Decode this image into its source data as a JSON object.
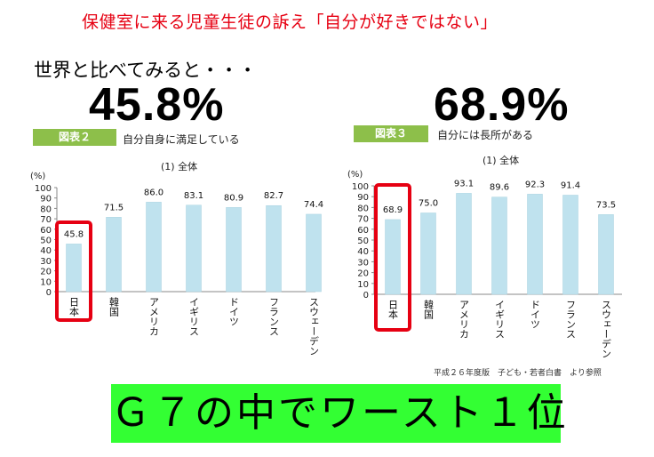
{
  "headline": "保健室に来る児童生徒の訴え「自分が好きではない」",
  "subhead": "世界と比べてみると・・・",
  "highlight_left": "45.8%",
  "highlight_right": "68.9%",
  "source_note": "平成２６年度版　子ども・若者白書　より参照",
  "banner": "Ｇ７の中でワースト１位",
  "colors": {
    "accent_red": "#e60012",
    "bar_fill": "#bfe2ee",
    "badge_green": "#8dbf4a",
    "banner_green": "#33ff33"
  },
  "chart_data": [
    {
      "type": "bar",
      "figure_label": "図表２",
      "title": "自分自身に満足している",
      "subtitle": "(1) 全体",
      "ylabel": "(%)",
      "ylim": [
        0,
        100
      ],
      "yticks": [
        0,
        10,
        20,
        30,
        40,
        50,
        60,
        70,
        80,
        90,
        100
      ],
      "categories": [
        "日本",
        "韓国",
        "アメリカ",
        "イギリス",
        "ドイツ",
        "フランス",
        "スウェーデン"
      ],
      "values": [
        45.8,
        71.5,
        86.0,
        83.1,
        80.9,
        82.7,
        74.4
      ],
      "value_labels": [
        "45.8",
        "71.5",
        "86.0",
        "83.1",
        "80.9",
        "82.7",
        "74.4"
      ],
      "highlight_category": "日本"
    },
    {
      "type": "bar",
      "figure_label": "図表３",
      "title": "自分には長所がある",
      "subtitle": "(1) 全体",
      "ylabel": "(%)",
      "ylim": [
        0,
        100
      ],
      "yticks": [
        0,
        10,
        20,
        30,
        40,
        50,
        60,
        70,
        80,
        90,
        100
      ],
      "categories": [
        "日本",
        "韓国",
        "アメリカ",
        "イギリス",
        "ドイツ",
        "フランス",
        "スウェーデン"
      ],
      "values": [
        68.9,
        75.0,
        93.1,
        89.6,
        92.3,
        91.4,
        73.5
      ],
      "value_labels": [
        "68.9",
        "75.0",
        "93.1",
        "89.6",
        "92.3",
        "91.4",
        "73.5"
      ],
      "highlight_category": "日本"
    }
  ]
}
